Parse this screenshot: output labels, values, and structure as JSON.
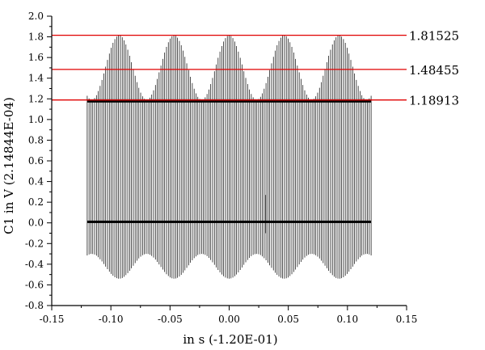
{
  "chart_data": {
    "type": "line",
    "title": "",
    "xlabel": "in s (-1.20E-01)",
    "ylabel": "C1 in V (2.14844E-04)",
    "xlim": [
      -0.15,
      0.15
    ],
    "ylim": [
      -0.8,
      2.0
    ],
    "x_ticks": [
      -0.15,
      -0.1,
      -0.05,
      0.0,
      0.05,
      0.1,
      0.15
    ],
    "x_tick_labels": [
      "-0.15",
      "-0.10",
      "-0.05",
      "0.00",
      "0.05",
      "0.10",
      "0.15"
    ],
    "y_ticks": [
      -0.8,
      -0.6,
      -0.4,
      -0.2,
      0.0,
      0.2,
      0.4,
      0.6,
      0.8,
      1.0,
      1.2,
      1.4,
      1.6,
      1.8,
      2.0
    ],
    "y_tick_labels": [
      "-0.8",
      "-0.6",
      "-0.4",
      "-0.2",
      "0.0",
      "0.2",
      "0.4",
      "0.6",
      "0.8",
      "1.0",
      "1.2",
      "1.4",
      "1.6",
      "1.8",
      "2.0"
    ],
    "grid": false,
    "legend": "none",
    "signal": {
      "x_range": [
        -0.12,
        0.12
      ],
      "pulse_count": 155,
      "envelope_period": 0.0465,
      "envelope_phase": 0.0,
      "peak_min": 1.19,
      "peak_max": 1.815,
      "trough_min": -0.54,
      "trough_max": -0.3,
      "plateau_level": 1.18,
      "baseline_level": 0.01,
      "spike_x": 0.031,
      "spike_y": 0.27,
      "color": "#000000"
    },
    "reference_lines": [
      {
        "y": 1.81525,
        "label": "1.81525",
        "color": "#e00000"
      },
      {
        "y": 1.48455,
        "label": "1.48455",
        "color": "#e00000"
      },
      {
        "y": 1.18913,
        "label": "1.18913",
        "color": "#e00000"
      }
    ]
  }
}
